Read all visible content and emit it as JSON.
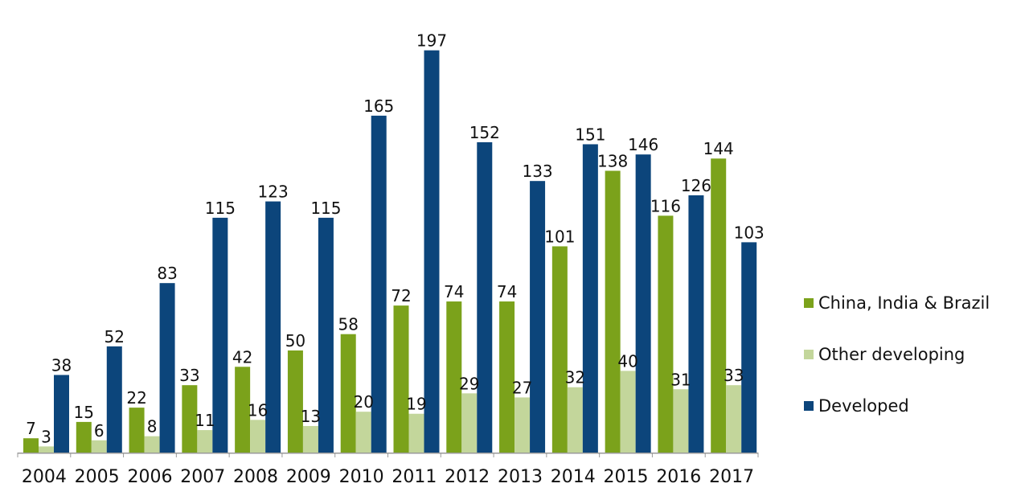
{
  "chart_data": {
    "type": "bar",
    "categories": [
      "2004",
      "2005",
      "2006",
      "2007",
      "2008",
      "2009",
      "2010",
      "2011",
      "2012",
      "2013",
      "2014",
      "2015",
      "2016",
      "2017"
    ],
    "series": [
      {
        "name": "China, India & Brazil",
        "color": "#7ba21b",
        "values": [
          7,
          15,
          22,
          33,
          42,
          50,
          58,
          72,
          74,
          74,
          101,
          138,
          116,
          144
        ]
      },
      {
        "name": "Other developing",
        "color": "#c3d69b",
        "values": [
          3,
          6,
          8,
          11,
          16,
          13,
          20,
          19,
          29,
          27,
          32,
          40,
          31,
          33
        ]
      },
      {
        "name": "Developed",
        "color": "#0c457b",
        "values": [
          38,
          52,
          83,
          115,
          123,
          115,
          165,
          197,
          152,
          133,
          151,
          146,
          126,
          103
        ]
      }
    ],
    "ylim": [
      0,
      200
    ],
    "grid": false,
    "legend_position": "right",
    "title": "",
    "xlabel": "",
    "ylabel": ""
  },
  "legend": {
    "items": [
      "China, India & Brazil",
      "Other developing",
      "Developed"
    ]
  }
}
